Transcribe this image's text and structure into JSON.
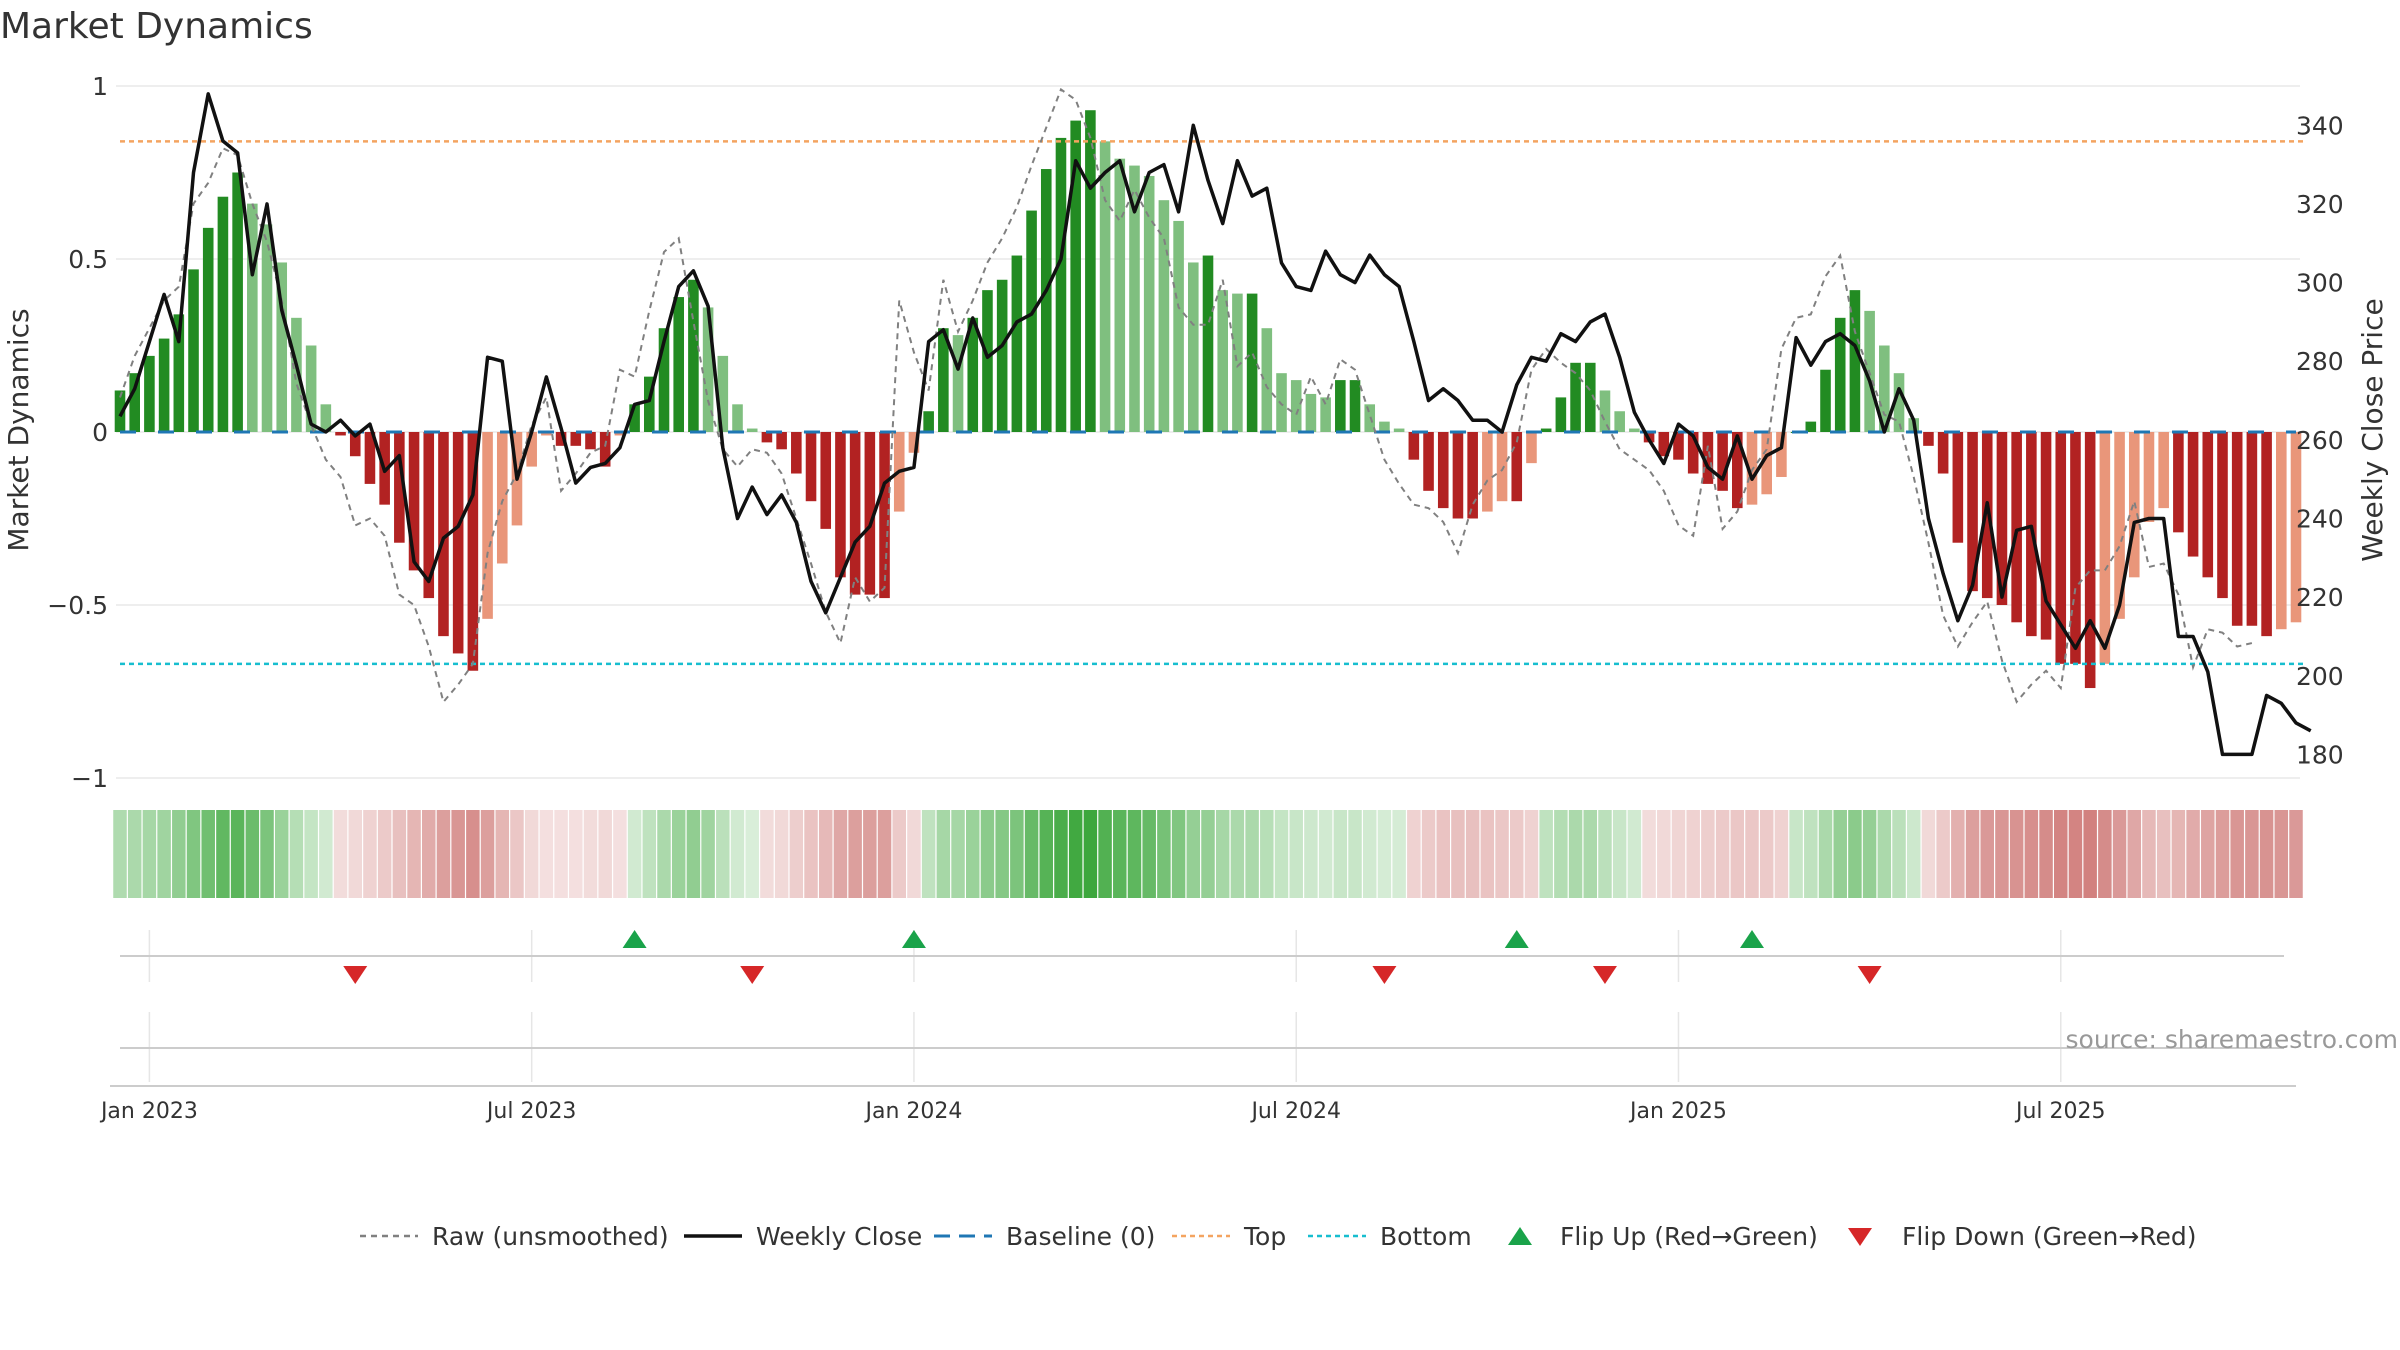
{
  "chart_data": {
    "type": "bar",
    "title": "Market Dynamics",
    "ylabel_left": "Market Dynamics",
    "ylabel_right": "Weekly Close Price",
    "ylim_left": [
      -1,
      1
    ],
    "ylim_right": [
      174,
      350
    ],
    "left_ticks": [
      {
        "v": 1,
        "label": "1"
      },
      {
        "v": 0.5,
        "label": "0.5"
      },
      {
        "v": 0,
        "label": "0"
      },
      {
        "v": -0.5,
        "label": "−0.5"
      },
      {
        "v": -1,
        "label": "−1"
      }
    ],
    "right_ticks": [
      180,
      200,
      220,
      240,
      260,
      280,
      300,
      320,
      340
    ],
    "x_ticks": [
      {
        "i": 2,
        "label": "Jan 2023"
      },
      {
        "i": 28,
        "label": "Jul 2023"
      },
      {
        "i": 54,
        "label": "Jan 2024"
      },
      {
        "i": 80,
        "label": "Jul 2024"
      },
      {
        "i": 106,
        "label": "Jan 2025"
      },
      {
        "i": 132,
        "label": "Jul 2025"
      }
    ],
    "top_line": 0.84,
    "bottom_line": -0.67,
    "bars": [
      0.12,
      0.17,
      0.22,
      0.27,
      0.34,
      0.47,
      0.59,
      0.68,
      0.75,
      0.66,
      0.6,
      0.49,
      0.33,
      0.25,
      0.08,
      -0.01,
      -0.07,
      -0.15,
      -0.21,
      -0.32,
      -0.4,
      -0.48,
      -0.59,
      -0.64,
      -0.69,
      -0.54,
      -0.38,
      -0.27,
      -0.1,
      -0.01,
      -0.04,
      -0.04,
      -0.05,
      -0.1,
      -0.01,
      0.08,
      0.16,
      0.3,
      0.39,
      0.44,
      0.36,
      0.22,
      0.08,
      0.01,
      -0.03,
      -0.05,
      -0.12,
      -0.2,
      -0.28,
      -0.42,
      -0.47,
      -0.47,
      -0.48,
      -0.23,
      -0.06,
      0.06,
      0.3,
      0.28,
      0.33,
      0.41,
      0.44,
      0.51,
      0.64,
      0.76,
      0.85,
      0.9,
      0.93,
      0.84,
      0.79,
      0.77,
      0.74,
      0.67,
      0.61,
      0.49,
      0.51,
      0.41,
      0.4,
      0.4,
      0.3,
      0.17,
      0.15,
      0.11,
      0.1,
      0.15,
      0.15,
      0.08,
      0.03,
      0.01,
      -0.08,
      -0.17,
      -0.22,
      -0.25,
      -0.25,
      -0.23,
      -0.2,
      -0.2,
      -0.09,
      0.01,
      0.1,
      0.2,
      0.2,
      0.12,
      0.06,
      0.01,
      -0.03,
      -0.07,
      -0.08,
      -0.12,
      -0.15,
      -0.17,
      -0.22,
      -0.21,
      -0.18,
      -0.13,
      0.0,
      0.03,
      0.18,
      0.33,
      0.41,
      0.35,
      0.25,
      0.17,
      0.04,
      -0.04,
      -0.12,
      -0.32,
      -0.46,
      -0.48,
      -0.5,
      -0.55,
      -0.59,
      -0.6,
      -0.67,
      -0.67,
      -0.74,
      -0.67,
      -0.54,
      -0.42,
      -0.26,
      -0.22,
      -0.29,
      -0.36,
      -0.42,
      -0.48,
      -0.56,
      -0.56,
      -0.59,
      -0.57,
      -0.55
    ],
    "raw": [
      0.1,
      0.22,
      0.3,
      0.38,
      0.42,
      0.66,
      0.72,
      0.82,
      0.8,
      0.66,
      0.55,
      0.38,
      0.14,
      0.02,
      -0.08,
      -0.13,
      -0.27,
      -0.25,
      -0.3,
      -0.47,
      -0.5,
      -0.62,
      -0.78,
      -0.73,
      -0.67,
      -0.35,
      -0.2,
      -0.12,
      0.02,
      0.1,
      -0.17,
      -0.12,
      -0.06,
      -0.04,
      0.18,
      0.16,
      0.35,
      0.52,
      0.56,
      0.32,
      0.09,
      -0.05,
      -0.1,
      -0.05,
      -0.06,
      -0.12,
      -0.25,
      -0.38,
      -0.52,
      -0.61,
      -0.42,
      -0.49,
      -0.45,
      0.38,
      0.23,
      0.12,
      0.44,
      0.29,
      0.38,
      0.49,
      0.56,
      0.65,
      0.77,
      0.88,
      0.99,
      0.96,
      0.85,
      0.67,
      0.61,
      0.7,
      0.62,
      0.56,
      0.36,
      0.31,
      0.31,
      0.44,
      0.19,
      0.23,
      0.13,
      0.08,
      0.05,
      0.16,
      0.08,
      0.21,
      0.18,
      0.05,
      -0.08,
      -0.15,
      -0.21,
      -0.22,
      -0.26,
      -0.35,
      -0.21,
      -0.14,
      -0.11,
      -0.03,
      0.18,
      0.24,
      0.2,
      0.17,
      0.12,
      0.03,
      -0.05,
      -0.08,
      -0.11,
      -0.17,
      -0.27,
      -0.3,
      -0.04,
      -0.28,
      -0.23,
      -0.11,
      -0.05,
      0.24,
      0.33,
      0.34,
      0.45,
      0.51,
      0.29,
      0.17,
      0.05,
      0.03,
      -0.13,
      -0.32,
      -0.53,
      -0.62,
      -0.55,
      -0.49,
      -0.66,
      -0.78,
      -0.73,
      -0.69,
      -0.74,
      -0.45,
      -0.4,
      -0.4,
      -0.33,
      -0.2,
      -0.39,
      -0.38,
      -0.47,
      -0.68,
      -0.57,
      -0.58,
      -0.62,
      -0.61
    ],
    "price": [
      266,
      273,
      285,
      297,
      285,
      328,
      348,
      336,
      333,
      302,
      320,
      293,
      279,
      264,
      262,
      265,
      261,
      264,
      252,
      256,
      229,
      224,
      235,
      238,
      246,
      281,
      280,
      250,
      262,
      276,
      263,
      249,
      253,
      254,
      258,
      269,
      270,
      285,
      299,
      303,
      294,
      258,
      240,
      248,
      241,
      246,
      239,
      224,
      216,
      225,
      234,
      238,
      249,
      252,
      253,
      285,
      288,
      278,
      291,
      281,
      284,
      290,
      292,
      298,
      306,
      331,
      324,
      328,
      331,
      318,
      328,
      330,
      318,
      340,
      326,
      315,
      331,
      322,
      324,
      305,
      299,
      298,
      308,
      302,
      300,
      307,
      302,
      299,
      285,
      270,
      273,
      270,
      265,
      265,
      262,
      274,
      281,
      280,
      287,
      285,
      290,
      292,
      281,
      267,
      260,
      254,
      264,
      261,
      253,
      250,
      261,
      250,
      256,
      258,
      286,
      279,
      285,
      287,
      284,
      275,
      262,
      273,
      265,
      240,
      226,
      214,
      223,
      244,
      220,
      237,
      238,
      219,
      213,
      207,
      214,
      207,
      218,
      239,
      240,
      240,
      210,
      210,
      201,
      180,
      180,
      180,
      195,
      193,
      188,
      186
    ],
    "regimes": [],
    "ribbon_alpha": [
      0.38,
      0.4,
      0.42,
      0.45,
      0.52,
      0.6,
      0.68,
      0.75,
      0.78,
      0.7,
      0.62,
      0.48,
      0.35,
      0.28,
      0.22,
      0.2,
      0.22,
      0.26,
      0.3,
      0.36,
      0.42,
      0.48,
      0.55,
      0.6,
      0.64,
      0.55,
      0.42,
      0.32,
      0.22,
      0.18,
      0.18,
      0.18,
      0.2,
      0.22,
      0.18,
      0.22,
      0.3,
      0.4,
      0.48,
      0.52,
      0.45,
      0.32,
      0.22,
      0.18,
      0.2,
      0.22,
      0.28,
      0.34,
      0.4,
      0.5,
      0.55,
      0.55,
      0.55,
      0.3,
      0.22,
      0.3,
      0.42,
      0.42,
      0.48,
      0.55,
      0.58,
      0.62,
      0.72,
      0.8,
      0.86,
      0.9,
      0.92,
      0.82,
      0.78,
      0.76,
      0.72,
      0.65,
      0.6,
      0.5,
      0.5,
      0.42,
      0.4,
      0.4,
      0.34,
      0.28,
      0.26,
      0.24,
      0.22,
      0.26,
      0.26,
      0.22,
      0.2,
      0.2,
      0.26,
      0.3,
      0.34,
      0.36,
      0.36,
      0.34,
      0.32,
      0.3,
      0.26,
      0.3,
      0.36,
      0.4,
      0.4,
      0.32,
      0.26,
      0.22,
      0.2,
      0.22,
      0.24,
      0.26,
      0.28,
      0.3,
      0.32,
      0.32,
      0.3,
      0.26,
      0.26,
      0.3,
      0.4,
      0.5,
      0.55,
      0.5,
      0.4,
      0.32,
      0.24,
      0.22,
      0.3,
      0.45,
      0.55,
      0.58,
      0.6,
      0.62,
      0.64,
      0.66,
      0.7,
      0.7,
      0.72,
      0.66,
      0.58,
      0.5,
      0.4,
      0.36,
      0.42,
      0.48,
      0.52,
      0.56,
      0.6,
      0.6,
      0.62,
      0.6,
      0.58
    ],
    "flips_up": [
      35,
      54,
      95,
      111
    ],
    "flips_down": [
      16,
      43,
      86,
      101,
      119
    ],
    "source": "source: sharemaestro.com",
    "legend": [
      "Raw (unsmoothed)",
      "Weekly Close",
      "Baseline (0)",
      "Top",
      "Bottom",
      "Flip Up (Red→Green)",
      "Flip Down (Green→Red)"
    ],
    "colors": {
      "green_dark": "#228b22",
      "green_light": "#7fbf7f",
      "red_dark": "#b22222",
      "red_light": "#e9967a",
      "ribbon_green": "#2ca02c",
      "ribbon_red": "#c0504d",
      "top": "#f4a460",
      "bottom": "#17becf",
      "baseline": "#1f77b4",
      "up_marker": "#1aa34a",
      "down_marker": "#d62728",
      "price": "#111111",
      "raw": "#808080"
    }
  }
}
